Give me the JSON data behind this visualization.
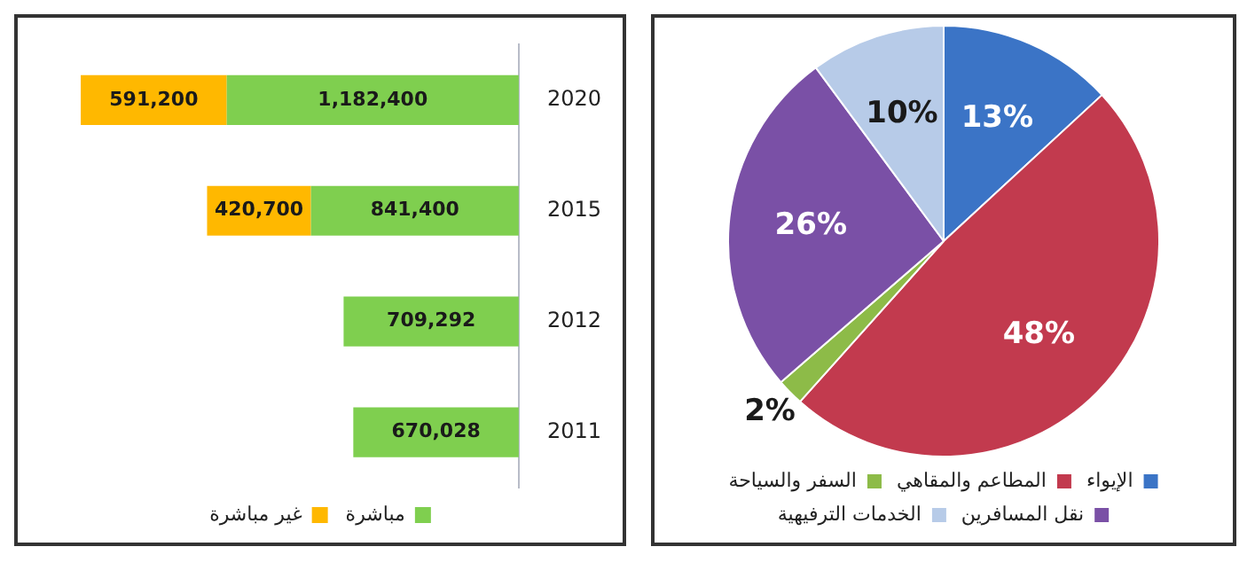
{
  "chart_data": [
    {
      "type": "bar",
      "orientation": "horizontal",
      "stacked": true,
      "categories": [
        "2020",
        "2015",
        "2012",
        "2011"
      ],
      "series": [
        {
          "name": "مباشرة",
          "color": "#7fcf4f",
          "values": [
            1182400,
            841400,
            709292,
            670028
          ],
          "value_labels": [
            "1,182,400",
            "841,400",
            "709,292",
            "670,028"
          ]
        },
        {
          "name": "غير مباشرة",
          "color": "#ffb800",
          "values": [
            591200,
            420700,
            null,
            null
          ],
          "value_labels": [
            "591,200",
            "420,700",
            null,
            null
          ]
        }
      ],
      "legend": "bottom"
    },
    {
      "type": "pie",
      "categories": [
        "الإيواء",
        "المطاعم والمقاهي",
        "السفر والسياحة",
        "نقل المسافرين",
        "الخدمات الترفيهية"
      ],
      "values": [
        13,
        48,
        2,
        26,
        10
      ],
      "value_labels": [
        "13%",
        "48%",
        "2%",
        "26%",
        "10%"
      ],
      "colors": [
        "#3b74c6",
        "#c23a4e",
        "#8dbb48",
        "#7a50a6",
        "#b7cbe8"
      ],
      "legend": "bottom"
    }
  ]
}
